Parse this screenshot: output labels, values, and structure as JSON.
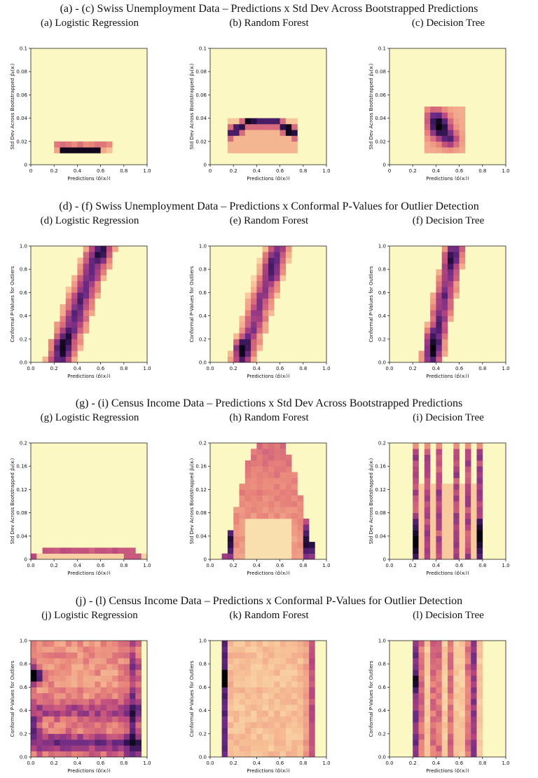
{
  "row_titles": [
    "(a) - (c) Swiss Unemployment Data – Predictions x Std Dev Across Bootstrapped Predictions",
    "(d) - (f) Swiss Unemployment Data – Predictions x Conformal P-Values for Outlier Detection",
    "(g) - (i) Census Income Data – Predictions x Std Dev Across Bootstrapped Predictions",
    "(j) - (l) Census Income Data – Predictions x Conformal P-Values for Outlier Detection"
  ],
  "colors": {
    "low": "#fbf8c4",
    "mid1": "#f7c197",
    "mid2": "#e8837a",
    "mid3": "#b9467f",
    "high1": "#6b2a86",
    "high2": "#2a1149",
    "max": "#050308"
  },
  "chart_data": [
    {
      "id": "a",
      "type": "heatmap",
      "title": "(a) Logistic Regression",
      "xlabel": "Predictions (p̂(xᵢ))",
      "ylabel": "Std Dev Across Bootstrapped p̂ᵦ(xᵢ)",
      "xlim": [
        0,
        1
      ],
      "ylim": [
        0,
        0.1
      ],
      "xticks": [
        "0",
        "0.2",
        "0.4",
        "0.6",
        "0.8",
        "1.0"
      ],
      "yticks": [
        "0",
        "0.02",
        "0.04",
        "0.06",
        "0.08",
        "0.1"
      ],
      "pattern": "lr_std_small"
    },
    {
      "id": "b",
      "type": "heatmap",
      "title": "(b) Random Forest",
      "xlabel": "Predictions (p̂(xᵢ))",
      "ylabel": "Std Dev Across Bootstrapped p̂ᵦ(xᵢ)",
      "xlim": [
        0,
        1
      ],
      "ylim": [
        0,
        0.1
      ],
      "xticks": [
        "0",
        "0.2",
        "0.4",
        "0.6",
        "0.8",
        "1.0"
      ],
      "yticks": [
        "0",
        "0.02",
        "0.04",
        "0.06",
        "0.08",
        "0.1"
      ],
      "pattern": "rf_arch_small"
    },
    {
      "id": "c",
      "type": "heatmap",
      "title": "(c) Decision Tree",
      "xlabel": "Predictions (p̂(xᵢ))",
      "ylabel": "Std Dev Across Bootstrapped p̂ᵦ(xᵢ)",
      "xlim": [
        0,
        1
      ],
      "ylim": [
        0,
        0.1
      ],
      "xticks": [
        "0",
        "0.2",
        "0.4",
        "0.6",
        "0.8",
        "1.0"
      ],
      "yticks": [
        "0",
        "0.02",
        "0.04",
        "0.06",
        "0.08",
        "0.1"
      ],
      "pattern": "dt_blob_small"
    },
    {
      "id": "d",
      "type": "heatmap",
      "title": "(d) Logistic Regression",
      "xlabel": "Predictions (p̂(xᵢ))",
      "ylabel": "Conformal P-Values for Outliers",
      "xlim": [
        0,
        1
      ],
      "ylim": [
        0,
        1
      ],
      "xticks": [
        "0.0",
        "0.2",
        "0.4",
        "0.6",
        "0.8",
        "1.0"
      ],
      "yticks": [
        "0.0",
        "0.2",
        "0.4",
        "0.6",
        "0.8",
        "1.0"
      ],
      "pattern": "diag_lr"
    },
    {
      "id": "e",
      "type": "heatmap",
      "title": "(e) Random Forest",
      "xlabel": "Predictions (p̂(xᵢ))",
      "ylabel": "Conformal P-Values for Outliers",
      "xlim": [
        0,
        1
      ],
      "ylim": [
        0,
        1
      ],
      "xticks": [
        "0.0",
        "0.2",
        "0.4",
        "0.6",
        "0.8",
        "1.0"
      ],
      "yticks": [
        "0.0",
        "0.2",
        "0.4",
        "0.6",
        "0.8",
        "1.0"
      ],
      "pattern": "diag_rf"
    },
    {
      "id": "f",
      "type": "heatmap",
      "title": "(f) Decision Tree",
      "xlabel": "Predictions (p̂(xᵢ))",
      "ylabel": "Conformal P-Values for Outliers",
      "xlim": [
        0,
        1
      ],
      "ylim": [
        0,
        1
      ],
      "xticks": [
        "0.0",
        "0.2",
        "0.4",
        "0.6",
        "0.8",
        "1.0"
      ],
      "yticks": [
        "0.0",
        "0.2",
        "0.4",
        "0.6",
        "0.8",
        "1.0"
      ],
      "pattern": "diag_dt"
    },
    {
      "id": "g",
      "type": "heatmap",
      "title": "(g) Logistic Regression",
      "xlabel": "Predictions (p̂(xᵢ))",
      "ylabel": "Std Dev Across Bootstrapped p̂ᵦ(xᵢ)",
      "xlim": [
        0,
        1
      ],
      "ylim": [
        0,
        0.2
      ],
      "xticks": [
        "0.0",
        "0.2",
        "0.4",
        "0.6",
        "0.8",
        "1.0"
      ],
      "yticks": [
        "0",
        "0.04",
        "0.08",
        "0.12",
        "0.16",
        "0.2"
      ],
      "pattern": "lr_std_band"
    },
    {
      "id": "h",
      "type": "heatmap",
      "title": "(h) Random Forest",
      "xlabel": "Predictions (p̂(xᵢ))",
      "ylabel": "Std Dev Across Bootstrapped p̂ᵦ(xᵢ)",
      "xlim": [
        0,
        1
      ],
      "ylim": [
        0,
        0.2
      ],
      "xticks": [
        "0.0",
        "0.2",
        "0.4",
        "0.6",
        "0.8",
        "1.0"
      ],
      "yticks": [
        "0",
        "0.04",
        "0.08",
        "0.12",
        "0.16",
        "0.2"
      ],
      "pattern": "rf_dome"
    },
    {
      "id": "i",
      "type": "heatmap",
      "title": "(i) Decision Tree",
      "xlabel": "Predictions (p̂(xᵢ))",
      "ylabel": "Std Dev Across Bootstrapped p̂ᵦ(xᵢ)",
      "xlim": [
        0,
        1
      ],
      "ylim": [
        0,
        0.2
      ],
      "xticks": [
        "0.0",
        "0.2",
        "0.4",
        "0.6",
        "0.8",
        "1.0"
      ],
      "yticks": [
        "0",
        "0.04",
        "0.08",
        "0.12",
        "0.16",
        "0.2"
      ],
      "pattern": "dt_columns"
    },
    {
      "id": "j",
      "type": "heatmap",
      "title": "(j) Logistic Regression",
      "xlabel": "Predictions (p̂(xᵢ))",
      "ylabel": "Conformal P-Values for Outliers",
      "xlim": [
        0,
        1
      ],
      "ylim": [
        0,
        1
      ],
      "xticks": [
        "0.0",
        "0.2",
        "0.4",
        "0.6",
        "0.8",
        "1.0"
      ],
      "yticks": [
        "0.0",
        "0.2",
        "0.4",
        "0.6",
        "0.8",
        "1.0"
      ],
      "pattern": "census_lr"
    },
    {
      "id": "k",
      "type": "heatmap",
      "title": "(k) Random Forest",
      "xlabel": "Predictions (p̂(xᵢ))",
      "ylabel": "Conformal P-Values for Outliers",
      "xlim": [
        0,
        1
      ],
      "ylim": [
        0,
        1
      ],
      "xticks": [
        "0.0",
        "0.2",
        "0.4",
        "0.6",
        "0.8",
        "1.0"
      ],
      "yticks": [
        "0.0",
        "0.2",
        "0.4",
        "0.6",
        "0.8",
        "1.0"
      ],
      "pattern": "census_rf"
    },
    {
      "id": "l",
      "type": "heatmap",
      "title": "(l) Decision Tree",
      "xlabel": "Predictions (p̂(xᵢ))",
      "ylabel": "Conformal P-Values for Outliers",
      "xlim": [
        0,
        1
      ],
      "ylim": [
        0,
        1
      ],
      "xticks": [
        "0.0",
        "0.2",
        "0.4",
        "0.6",
        "0.8",
        "1.0"
      ],
      "yticks": [
        "0.0",
        "0.2",
        "0.4",
        "0.6",
        "0.8",
        "1.0"
      ],
      "pattern": "census_dt"
    }
  ]
}
